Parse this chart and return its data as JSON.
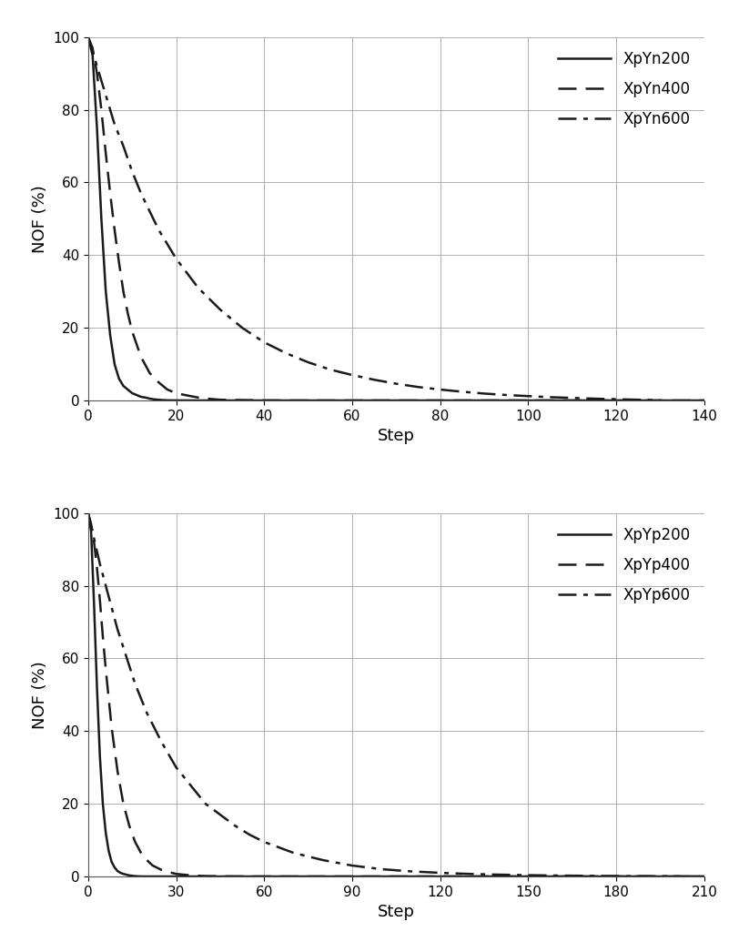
{
  "top_plot": {
    "ylabel": "NOF (%)",
    "xlabel": "Step",
    "xlim": [
      0,
      140
    ],
    "ylim": [
      0,
      100
    ],
    "xticks": [
      0,
      20,
      40,
      60,
      80,
      100,
      120,
      140
    ],
    "yticks": [
      0,
      20,
      40,
      60,
      80,
      100
    ],
    "series": [
      {
        "label": "XpYn200",
        "linestyle": "solid",
        "linewidth": 1.8,
        "x": [
          0,
          1,
          2,
          3,
          4,
          5,
          6,
          7,
          8,
          9,
          10,
          11,
          12,
          13,
          14,
          15,
          16,
          17,
          18,
          20,
          25,
          30,
          40,
          50,
          60,
          80,
          100,
          120,
          140
        ],
        "y": [
          100,
          95,
          75,
          50,
          30,
          18,
          10,
          6,
          4,
          3,
          2,
          1.5,
          1,
          0.8,
          0.5,
          0.3,
          0.2,
          0.1,
          0.05,
          0.02,
          0,
          0,
          0,
          0,
          0,
          0,
          0,
          0,
          0
        ]
      },
      {
        "label": "XpYn400",
        "linestyle": "dashed",
        "linewidth": 1.8,
        "x": [
          0,
          1,
          2,
          3,
          4,
          5,
          6,
          7,
          8,
          9,
          10,
          12,
          14,
          16,
          18,
          20,
          22,
          25,
          28,
          30,
          32,
          35,
          38,
          40,
          45,
          50,
          60,
          80,
          100,
          120,
          140
        ],
        "y": [
          100,
          97,
          90,
          80,
          68,
          57,
          47,
          38,
          30,
          24,
          19,
          12,
          7.5,
          5,
          3,
          2,
          1.5,
          0.8,
          0.4,
          0.2,
          0.15,
          0.1,
          0.05,
          0.02,
          0,
          0,
          0,
          0,
          0,
          0,
          0
        ]
      },
      {
        "label": "XpYn600",
        "linestyle": "dashdot",
        "linewidth": 1.8,
        "x": [
          0,
          2,
          4,
          6,
          8,
          10,
          12,
          14,
          16,
          18,
          20,
          25,
          30,
          35,
          40,
          45,
          50,
          55,
          60,
          65,
          70,
          75,
          80,
          85,
          90,
          95,
          100,
          105,
          110,
          115,
          120,
          125,
          130
        ],
        "y": [
          100,
          92,
          84,
          76,
          70,
          63,
          57,
          52,
          47,
          43,
          39,
          31,
          25,
          20,
          16,
          13,
          10.5,
          8.5,
          7,
          5.7,
          4.6,
          3.7,
          3,
          2.4,
          1.9,
          1.5,
          1.2,
          0.9,
          0.7,
          0.5,
          0.35,
          0.2,
          0.1
        ]
      }
    ]
  },
  "bottom_plot": {
    "ylabel": "NOF (%)",
    "xlabel": "Step",
    "xlim": [
      0,
      210
    ],
    "ylim": [
      0,
      100
    ],
    "xticks": [
      0,
      30,
      60,
      90,
      120,
      150,
      180,
      210
    ],
    "yticks": [
      0,
      20,
      40,
      60,
      80,
      100
    ],
    "series": [
      {
        "label": "XpYp200",
        "linestyle": "solid",
        "linewidth": 1.8,
        "x": [
          0,
          1,
          2,
          3,
          4,
          5,
          6,
          7,
          8,
          9,
          10,
          11,
          12,
          13,
          14,
          15,
          16,
          17,
          18,
          20,
          25,
          30,
          40,
          60,
          90,
          120,
          150,
          180,
          210
        ],
        "y": [
          100,
          95,
          75,
          52,
          33,
          20,
          12,
          7,
          4,
          2.5,
          1.5,
          1,
          0.7,
          0.5,
          0.3,
          0.2,
          0.1,
          0.05,
          0.02,
          0,
          0,
          0,
          0,
          0,
          0,
          0,
          0,
          0,
          0
        ]
      },
      {
        "label": "XpYp400",
        "linestyle": "dashed",
        "linewidth": 1.8,
        "x": [
          0,
          1,
          2,
          3,
          4,
          5,
          6,
          7,
          8,
          10,
          12,
          14,
          16,
          18,
          20,
          22,
          25,
          28,
          30,
          35,
          40,
          45,
          50,
          55,
          60,
          70,
          80,
          90,
          120,
          150,
          180,
          210
        ],
        "y": [
          100,
          97,
          92,
          85,
          76,
          66,
          57,
          49,
          41,
          29,
          20,
          14,
          9.5,
          6.5,
          4.5,
          3,
          1.8,
          1.1,
          0.7,
          0.3,
          0.1,
          0.05,
          0.02,
          0,
          0,
          0,
          0,
          0,
          0,
          0,
          0,
          0
        ]
      },
      {
        "label": "XpYp600",
        "linestyle": "dashdot",
        "linewidth": 1.8,
        "x": [
          0,
          2,
          4,
          6,
          8,
          10,
          12,
          14,
          16,
          18,
          20,
          25,
          30,
          35,
          40,
          45,
          50,
          55,
          60,
          70,
          80,
          90,
          100,
          110,
          120,
          130,
          140,
          150,
          160,
          170,
          180,
          190,
          200,
          205
        ],
        "y": [
          100,
          93,
          86,
          80,
          74,
          68,
          63,
          58,
          53,
          49,
          45,
          37,
          30,
          25,
          20,
          17,
          14,
          11.5,
          9.5,
          6.5,
          4.5,
          3,
          2,
          1.4,
          1,
          0.7,
          0.5,
          0.35,
          0.25,
          0.18,
          0.12,
          0.08,
          0.04,
          0.02
        ]
      }
    ]
  },
  "color": "#1a1a1a",
  "background_color": "#ffffff",
  "grid_color": "#b0b0b0",
  "legend_fontsize": 12,
  "axis_label_fontsize": 13,
  "tick_fontsize": 11
}
